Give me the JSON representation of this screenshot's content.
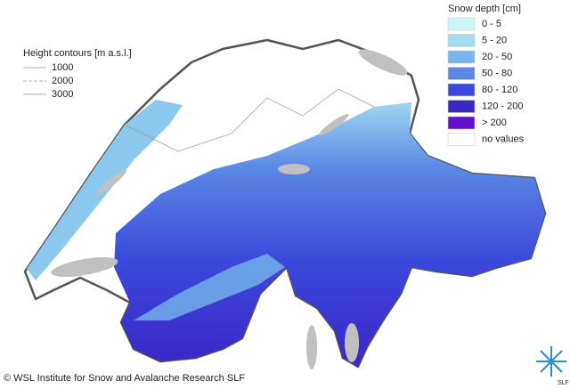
{
  "legend": {
    "title": "Snow depth [cm]",
    "items": [
      {
        "label": "0 - 5",
        "color": "#ccf6fb"
      },
      {
        "label": "5 - 20",
        "color": "#a3ddf1"
      },
      {
        "label": "20 - 50",
        "color": "#77b6ea"
      },
      {
        "label": "50 - 80",
        "color": "#5a88e4"
      },
      {
        "label": "80 - 120",
        "color": "#3b48dc"
      },
      {
        "label": "120 - 200",
        "color": "#3a27c6"
      },
      {
        "label": "> 200",
        "color": "#6410d2"
      },
      {
        "label": "no values",
        "color": "#ffffff"
      }
    ]
  },
  "contours": {
    "title": "Height contours [m a.s.l.]",
    "items": [
      {
        "label": "1000"
      },
      {
        "label": "2000"
      },
      {
        "label": "3000"
      }
    ]
  },
  "copyright": "© WSL Institute for Snow and Avalanche Research SLF",
  "logo": "SLF"
}
